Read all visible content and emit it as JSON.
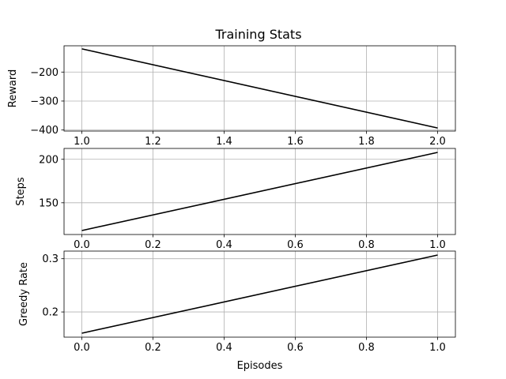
{
  "figure": {
    "title": "Training Stats"
  },
  "chart_data": [
    {
      "type": "line",
      "title": "Training Stats",
      "xlabel": "",
      "ylabel": "Reward",
      "x": [
        1.0,
        2.0
      ],
      "series": [
        {
          "name": "Reward",
          "values": [
            -120,
            -393
          ]
        }
      ],
      "xlim": [
        0.95,
        2.05
      ],
      "ylim": [
        -403.65,
        -109.35
      ],
      "xticks": [
        1.0,
        1.2,
        1.4,
        1.6,
        1.8,
        2.0
      ],
      "xtick_labels": [
        "1.0",
        "1.2",
        "1.4",
        "1.6",
        "1.8",
        "2.0"
      ],
      "yticks": [
        -200,
        -300,
        -400
      ],
      "ytick_labels": [
        "−200",
        "−300",
        "−400"
      ],
      "grid": true,
      "line_color": "#000000"
    },
    {
      "type": "line",
      "title": "",
      "xlabel": "",
      "ylabel": "Steps",
      "x": [
        0.0,
        1.0
      ],
      "series": [
        {
          "name": "Steps",
          "values": [
            118,
            208
          ]
        }
      ],
      "xlim": [
        -0.05,
        1.05
      ],
      "ylim": [
        113.5,
        212.5
      ],
      "xticks": [
        0.0,
        0.2,
        0.4,
        0.6,
        0.8,
        1.0
      ],
      "xtick_labels": [
        "0.0",
        "0.2",
        "0.4",
        "0.6",
        "0.8",
        "1.0"
      ],
      "yticks": [
        150,
        200
      ],
      "ytick_labels": [
        "150",
        "200"
      ],
      "grid": true,
      "line_color": "#000000"
    },
    {
      "type": "line",
      "title": "",
      "xlabel": "Episodes",
      "ylabel": "Greedy Rate",
      "x": [
        0.0,
        1.0
      ],
      "series": [
        {
          "name": "Greedy Rate",
          "values": [
            0.16,
            0.307
          ]
        }
      ],
      "xlim": [
        -0.05,
        1.05
      ],
      "ylim": [
        0.15265,
        0.31435
      ],
      "xticks": [
        0.0,
        0.2,
        0.4,
        0.6,
        0.8,
        1.0
      ],
      "xtick_labels": [
        "0.0",
        "0.2",
        "0.4",
        "0.6",
        "0.8",
        "1.0"
      ],
      "yticks": [
        0.2,
        0.3
      ],
      "ytick_labels": [
        "0.2",
        "0.3"
      ],
      "grid": true,
      "line_color": "#000000"
    }
  ]
}
